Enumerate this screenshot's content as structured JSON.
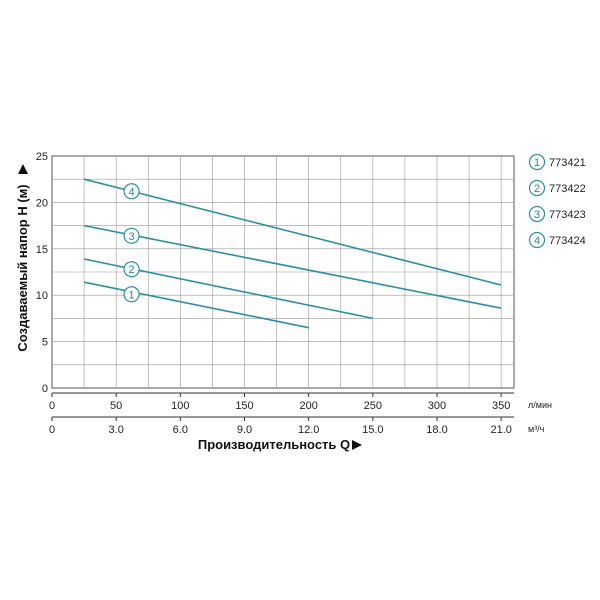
{
  "chart_data": {
    "type": "line",
    "x_primary": {
      "unit": "л/мин",
      "ticks": [
        0,
        50,
        100,
        150,
        200,
        250,
        300,
        350
      ],
      "range": [
        0,
        360
      ]
    },
    "x_secondary": {
      "unit": "м³/ч",
      "ticks": [
        "0",
        "3.0",
        "6.0",
        "9.0",
        "12.0",
        "15.0",
        "18.0",
        "21.0"
      ]
    },
    "xlabel": "Производительность Q",
    "ylabel": "Создаваемый напор H (м)",
    "y_ticks": [
      0,
      5,
      10,
      15,
      20,
      25
    ],
    "ylim": [
      0,
      25
    ],
    "grid": true,
    "legend_position": "right",
    "line_color": "#2a8fa0",
    "series": [
      {
        "name": "773421",
        "marker": "1",
        "points": [
          [
            25,
            11.4
          ],
          [
            200,
            6.5
          ]
        ],
        "label_at": [
          62,
          10.1
        ]
      },
      {
        "name": "773422",
        "marker": "2",
        "points": [
          [
            25,
            13.9
          ],
          [
            250,
            7.5
          ]
        ],
        "label_at": [
          62,
          12.8
        ]
      },
      {
        "name": "773423",
        "marker": "3",
        "points": [
          [
            25,
            17.5
          ],
          [
            350,
            8.6
          ]
        ],
        "label_at": [
          62,
          16.4
        ]
      },
      {
        "name": "773424",
        "marker": "4",
        "points": [
          [
            25,
            22.5
          ],
          [
            350,
            11.1
          ]
        ],
        "label_at": [
          62,
          21.2
        ]
      }
    ]
  }
}
